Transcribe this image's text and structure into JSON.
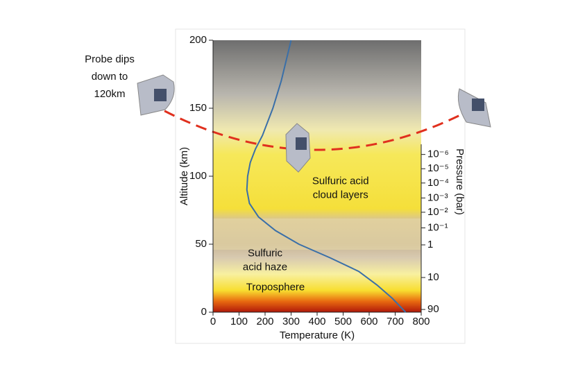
{
  "chart_data": {
    "type": "line",
    "x_label": "Temperature (K)",
    "y_label": "Altitude (km)",
    "y2_label": "Pressure (bar)",
    "x": [
      740,
      690,
      630,
      560,
      450,
      330,
      240,
      175,
      140,
      130,
      133,
      143,
      163,
      190,
      230,
      262,
      300
    ],
    "values": [
      0,
      10,
      20,
      30,
      40,
      50,
      60,
      70,
      80,
      90,
      100,
      110,
      120,
      130,
      150,
      170,
      200
    ],
    "color": "#3a6fa8",
    "xlim": [
      0,
      800
    ],
    "xticks": [
      0,
      100,
      200,
      300,
      400,
      500,
      600,
      700,
      800
    ],
    "ylim": [
      0,
      200
    ],
    "yticks": [
      0,
      50,
      100,
      150,
      200
    ],
    "pressure_ticks": [
      {
        "altitude": 116,
        "label": "10⁻⁶"
      },
      {
        "altitude": 105.5,
        "label": "10⁻⁵"
      },
      {
        "altitude": 95,
        "label": "10⁻⁴"
      },
      {
        "altitude": 84,
        "label": "10⁻³"
      },
      {
        "altitude": 73.5,
        "label": "10⁻²"
      },
      {
        "altitude": 62,
        "label": "10⁻¹"
      },
      {
        "altitude": 49.5,
        "label": "1"
      },
      {
        "altitude": 25.5,
        "label": "10"
      },
      {
        "altitude": 2,
        "label": "90"
      }
    ],
    "annotations": [
      {
        "lines": [
          "Sulfuric acid",
          "cloud layers"
        ],
        "x": 490,
        "y": 91
      },
      {
        "lines": [
          "Sulfuric",
          "acid haze"
        ],
        "x": 200,
        "y": 38
      },
      {
        "lines": [
          "Troposphere"
        ],
        "x": 240,
        "y": 18
      }
    ],
    "probe_note": [
      "Probe dips",
      "down to",
      "120km"
    ]
  }
}
